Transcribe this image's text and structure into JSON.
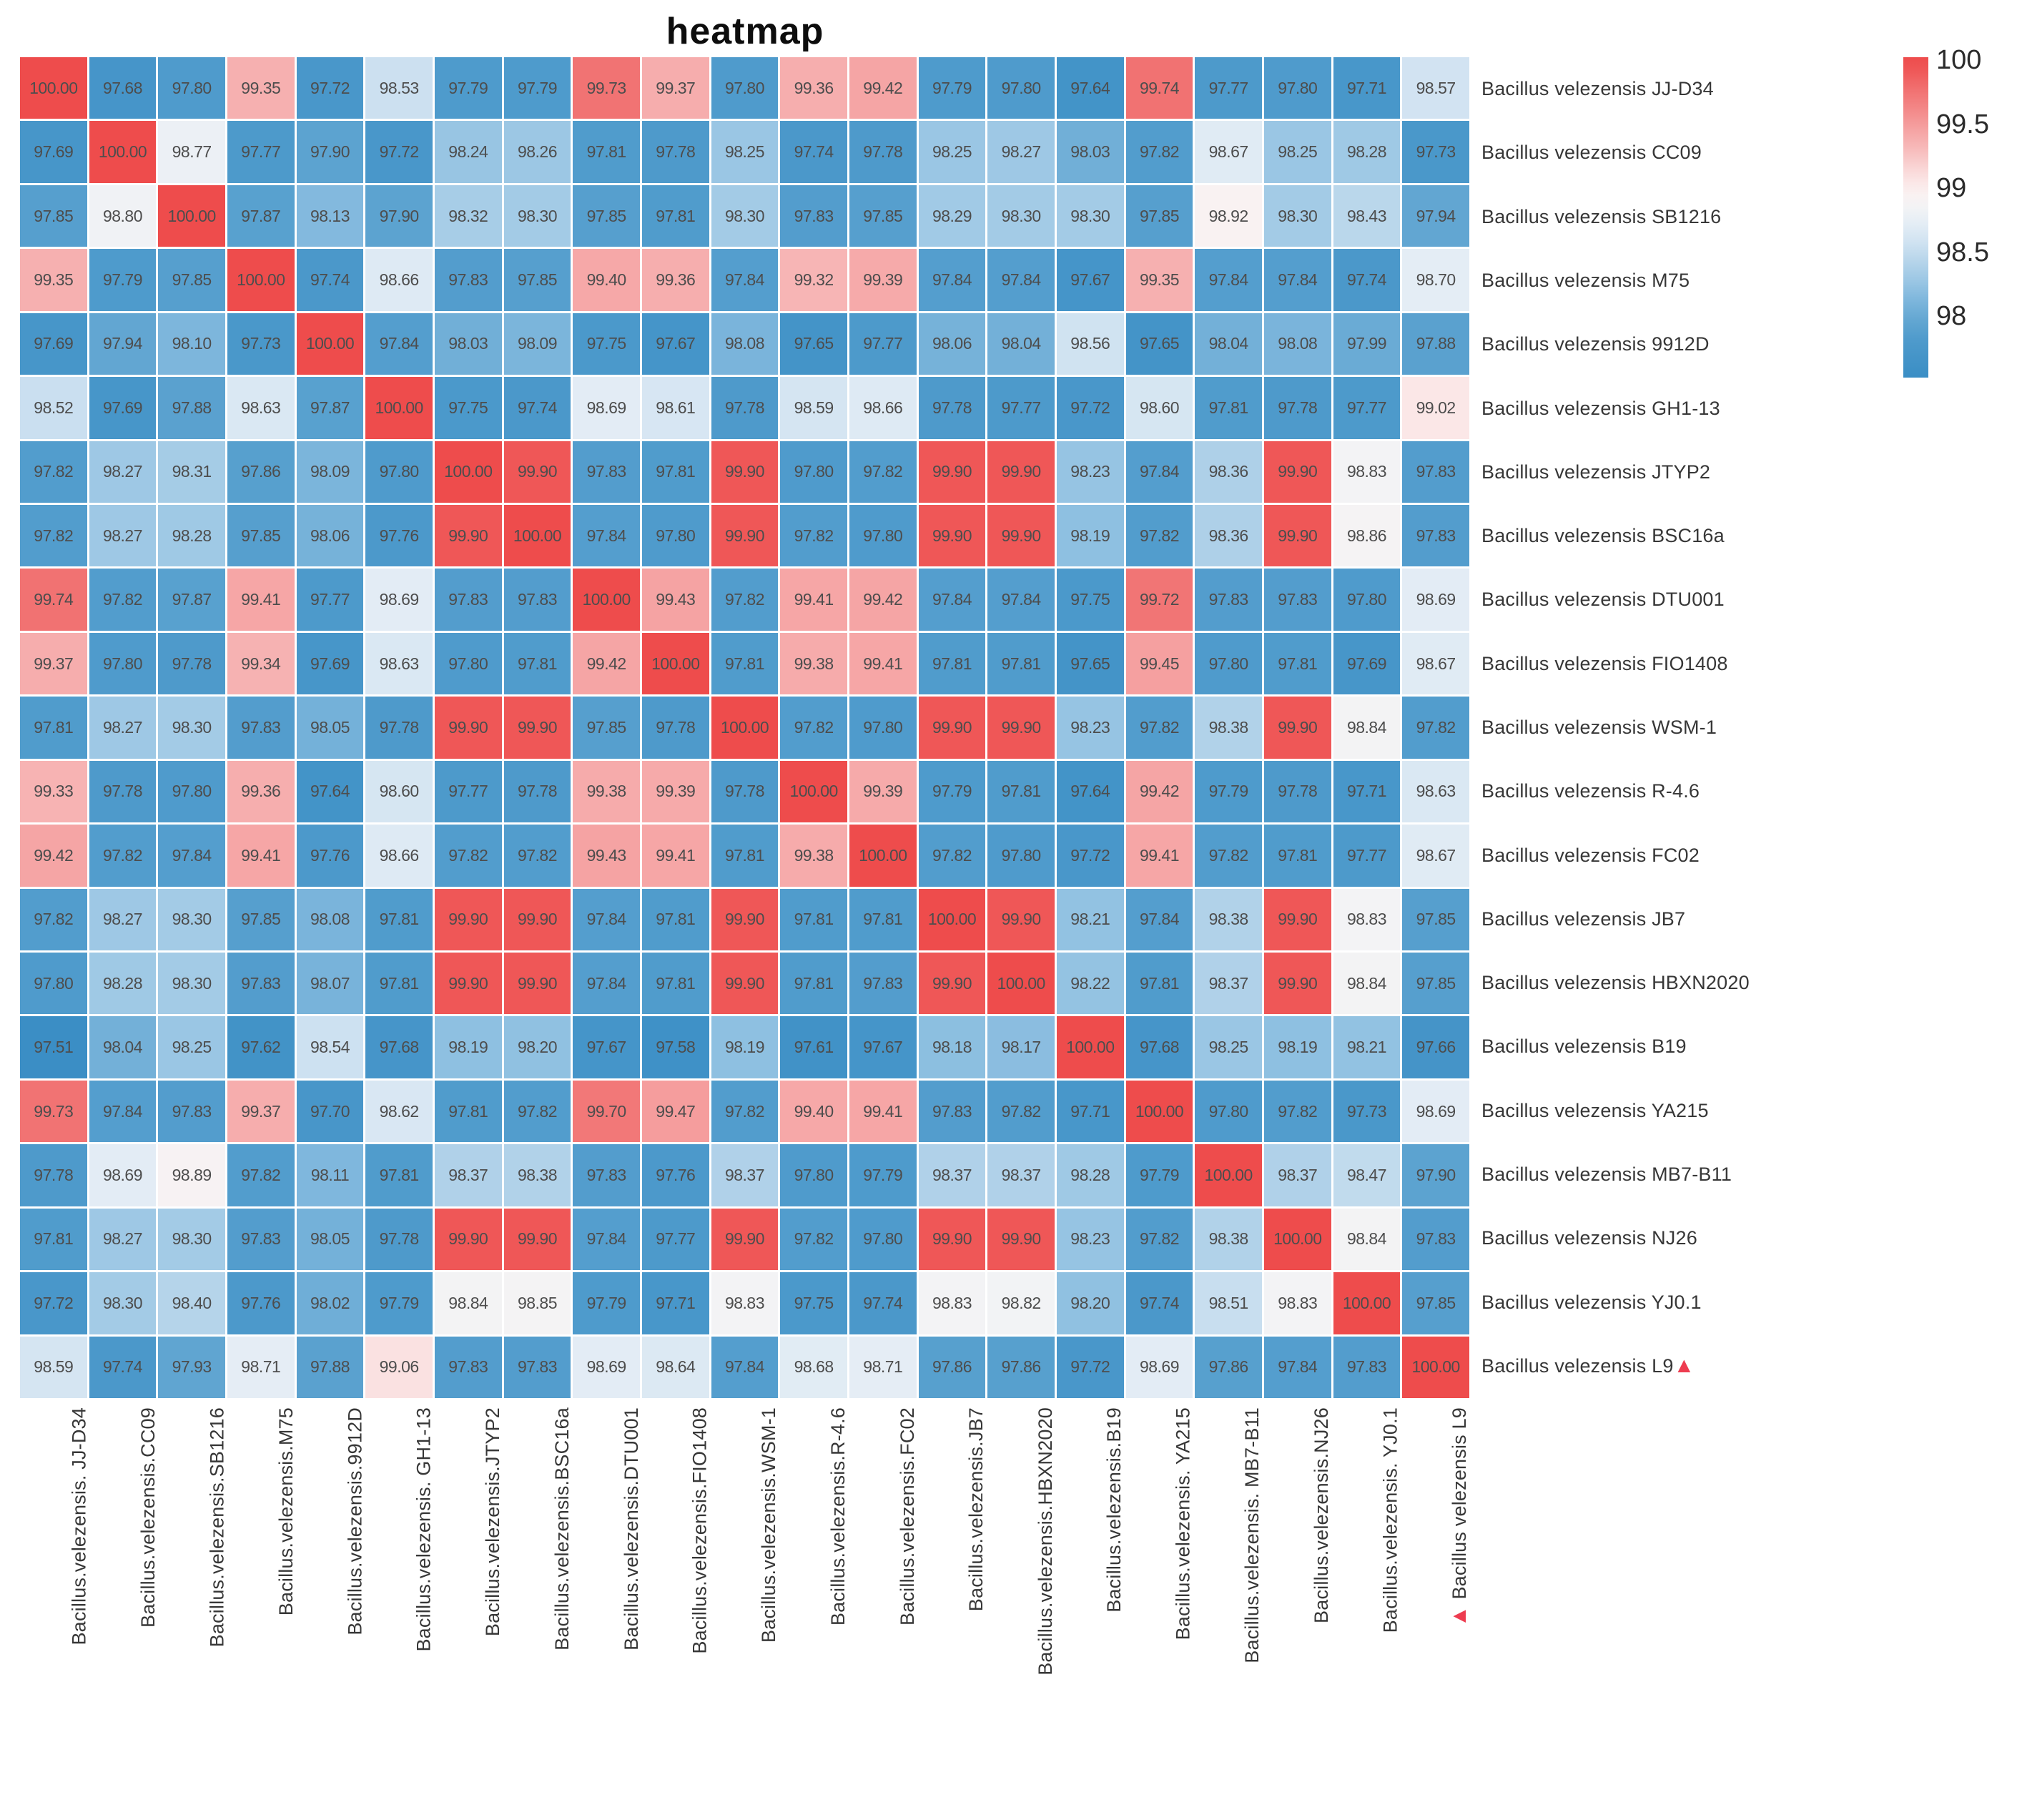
{
  "title": "heatmap",
  "colors": {
    "marker_red": "#ee3c50",
    "cell_text": "#4d4d4d",
    "label_text": "#373737",
    "background": "#ffffff"
  },
  "chart_data": {
    "type": "heatmap",
    "title": "heatmap",
    "legend_position": "right",
    "legend_ticks": [
      {
        "label": "100",
        "value": 100
      },
      {
        "label": "99.5",
        "value": 99.5
      },
      {
        "label": "99",
        "value": 99
      },
      {
        "label": "98.5",
        "value": 98.5
      },
      {
        "label": "98",
        "value": 98
      }
    ],
    "color_domain": [
      97.5,
      100
    ],
    "colormap": [
      {
        "value": 97.5,
        "color": "#3a8ec5"
      },
      {
        "value": 97.65,
        "color": "#4494c8"
      },
      {
        "value": 97.8,
        "color": "#4f9bcc"
      },
      {
        "value": 97.95,
        "color": "#63a7d2"
      },
      {
        "value": 98.1,
        "color": "#7db6dc"
      },
      {
        "value": 98.25,
        "color": "#9ac6e4"
      },
      {
        "value": 98.4,
        "color": "#b5d4ea"
      },
      {
        "value": 98.55,
        "color": "#cfe2f1"
      },
      {
        "value": 98.7,
        "color": "#e4edf5"
      },
      {
        "value": 98.82,
        "color": "#f2f3f5"
      },
      {
        "value": 98.92,
        "color": "#f9f2f2"
      },
      {
        "value": 99.02,
        "color": "#fbe7e7"
      },
      {
        "value": 99.15,
        "color": "#f9d3d3"
      },
      {
        "value": 99.3,
        "color": "#f7b8b8"
      },
      {
        "value": 99.45,
        "color": "#f5a0a0"
      },
      {
        "value": 99.6,
        "color": "#f38787"
      },
      {
        "value": 99.75,
        "color": "#f17070"
      },
      {
        "value": 99.9,
        "color": "#ef5757"
      },
      {
        "value": 100.0,
        "color": "#ee4c4c"
      }
    ],
    "highlighted_strain": "Bacillus velezensis L9",
    "highlight_marker": "▲",
    "row_labels": [
      "Bacillus velezensis JJ-D34",
      "Bacillus velezensis CC09",
      "Bacillus velezensis SB1216",
      "Bacillus velezensis M75",
      "Bacillus velezensis 9912D",
      "Bacillus velezensis GH1-13",
      "Bacillus velezensis JTYP2",
      "Bacillus velezensis BSC16a",
      "Bacillus velezensis DTU001",
      "Bacillus velezensis FIO1408",
      "Bacillus velezensis WSM-1",
      "Bacillus velezensis R-4.6",
      "Bacillus velezensis FC02",
      "Bacillus velezensis JB7",
      "Bacillus velezensis HBXN2020",
      "Bacillus velezensis B19",
      "Bacillus velezensis YA215",
      "Bacillus velezensis MB7-B11",
      "Bacillus velezensis NJ26",
      "Bacillus velezensis YJ0.1",
      "Bacillus velezensis L9"
    ],
    "col_labels": [
      "Bacillus.velezensis. JJ-D34",
      "Bacillus.velezensis.CC09",
      "Bacillus.velezensis.SB1216",
      "Bacillus.velezensis.M75",
      "Bacillus.velezensis.9912D",
      "Bacillus.velezensis. GH1-13",
      "Bacillus.velezensis.JTYP2",
      "Bacillus.velezensis.BSC16a",
      "Bacillus.velezensis.DTU001",
      "Bacillus.velezensis.FIO1408",
      "Bacillus.velezensis.WSM-1",
      "Bacillus.velezensis.R-4.6",
      "Bacillus.velezensis.FC02",
      "Bacillus.velezensis.JB7",
      "Bacillus.velezensis.HBXN2020",
      "Bacillus.velezensis.B19",
      "Bacillus.velezensis. YA215",
      "Bacillus.velezensis. MB7-B11",
      "Bacillus.velezensis.NJ26",
      "Bacillus.velezensis. YJ0.1",
      "Bacillus velezensis  L9"
    ],
    "values": [
      [
        "100.00",
        "97.68",
        "97.80",
        "99.35",
        "97.72",
        "98.53",
        "97.79",
        "97.79",
        "99.73",
        "99.37",
        "97.80",
        "99.36",
        "99.42",
        "97.79",
        "97.80",
        "97.64",
        "99.74",
        "97.77",
        "97.80",
        "97.71",
        "98.57"
      ],
      [
        "97.69",
        "100.00",
        "98.77",
        "97.77",
        "97.90",
        "97.72",
        "98.24",
        "98.26",
        "97.81",
        "97.78",
        "98.25",
        "97.74",
        "97.78",
        "98.25",
        "98.27",
        "98.03",
        "97.82",
        "98.67",
        "98.25",
        "98.28",
        "97.73"
      ],
      [
        "97.85",
        "98.80",
        "100.00",
        "97.87",
        "98.13",
        "97.90",
        "98.32",
        "98.30",
        "97.85",
        "97.81",
        "98.30",
        "97.83",
        "97.85",
        "98.29",
        "98.30",
        "98.30",
        "97.85",
        "98.92",
        "98.30",
        "98.43",
        "97.94"
      ],
      [
        "99.35",
        "97.79",
        "97.85",
        "100.00",
        "97.74",
        "98.66",
        "97.83",
        "97.85",
        "99.40",
        "99.36",
        "97.84",
        "99.32",
        "99.39",
        "97.84",
        "97.84",
        "97.67",
        "99.35",
        "97.84",
        "97.84",
        "97.74",
        "98.70"
      ],
      [
        "97.69",
        "97.94",
        "98.10",
        "97.73",
        "100.00",
        "97.84",
        "98.03",
        "98.09",
        "97.75",
        "97.67",
        "98.08",
        "97.65",
        "97.77",
        "98.06",
        "98.04",
        "98.56",
        "97.65",
        "98.04",
        "98.08",
        "97.99",
        "97.88"
      ],
      [
        "98.52",
        "97.69",
        "97.88",
        "98.63",
        "97.87",
        "100.00",
        "97.75",
        "97.74",
        "98.69",
        "98.61",
        "97.78",
        "98.59",
        "98.66",
        "97.78",
        "97.77",
        "97.72",
        "98.60",
        "97.81",
        "97.78",
        "97.77",
        "99.02"
      ],
      [
        "97.82",
        "98.27",
        "98.31",
        "97.86",
        "98.09",
        "97.80",
        "100.00",
        "99.90",
        "97.83",
        "97.81",
        "99.90",
        "97.80",
        "97.82",
        "99.90",
        "99.90",
        "98.23",
        "97.84",
        "98.36",
        "99.90",
        "98.83",
        "97.83"
      ],
      [
        "97.82",
        "98.27",
        "98.28",
        "97.85",
        "98.06",
        "97.76",
        "99.90",
        "100.00",
        "97.84",
        "97.80",
        "99.90",
        "97.82",
        "97.80",
        "99.90",
        "99.90",
        "98.19",
        "97.82",
        "98.36",
        "99.90",
        "98.86",
        "97.83"
      ],
      [
        "99.74",
        "97.82",
        "97.87",
        "99.41",
        "97.77",
        "98.69",
        "97.83",
        "97.83",
        "100.00",
        "99.43",
        "97.82",
        "99.41",
        "99.42",
        "97.84",
        "97.84",
        "97.75",
        "99.72",
        "97.83",
        "97.83",
        "97.80",
        "98.69"
      ],
      [
        "99.37",
        "97.80",
        "97.78",
        "99.34",
        "97.69",
        "98.63",
        "97.80",
        "97.81",
        "99.42",
        "100.00",
        "97.81",
        "99.38",
        "99.41",
        "97.81",
        "97.81",
        "97.65",
        "99.45",
        "97.80",
        "97.81",
        "97.69",
        "98.67"
      ],
      [
        "97.81",
        "98.27",
        "98.30",
        "97.83",
        "98.05",
        "97.78",
        "99.90",
        "99.90",
        "97.85",
        "97.78",
        "100.00",
        "97.82",
        "97.80",
        "99.90",
        "99.90",
        "98.23",
        "97.82",
        "98.38",
        "99.90",
        "98.84",
        "97.82"
      ],
      [
        "99.33",
        "97.78",
        "97.80",
        "99.36",
        "97.64",
        "98.60",
        "97.77",
        "97.78",
        "99.38",
        "99.39",
        "97.78",
        "100.00",
        "99.39",
        "97.79",
        "97.81",
        "97.64",
        "99.42",
        "97.79",
        "97.78",
        "97.71",
        "98.63"
      ],
      [
        "99.42",
        "97.82",
        "97.84",
        "99.41",
        "97.76",
        "98.66",
        "97.82",
        "97.82",
        "99.43",
        "99.41",
        "97.81",
        "99.38",
        "100.00",
        "97.82",
        "97.80",
        "97.72",
        "99.41",
        "97.82",
        "97.81",
        "97.77",
        "98.67"
      ],
      [
        "97.82",
        "98.27",
        "98.30",
        "97.85",
        "98.08",
        "97.81",
        "99.90",
        "99.90",
        "97.84",
        "97.81",
        "99.90",
        "97.81",
        "97.81",
        "100.00",
        "99.90",
        "98.21",
        "97.84",
        "98.38",
        "99.90",
        "98.83",
        "97.85"
      ],
      [
        "97.80",
        "98.28",
        "98.30",
        "97.83",
        "98.07",
        "97.81",
        "99.90",
        "99.90",
        "97.84",
        "97.81",
        "99.90",
        "97.81",
        "97.83",
        "99.90",
        "100.00",
        "98.22",
        "97.81",
        "98.37",
        "99.90",
        "98.84",
        "97.85"
      ],
      [
        "97.51",
        "98.04",
        "98.25",
        "97.62",
        "98.54",
        "97.68",
        "98.19",
        "98.20",
        "97.67",
        "97.58",
        "98.19",
        "97.61",
        "97.67",
        "98.18",
        "98.17",
        "100.00",
        "97.68",
        "98.25",
        "98.19",
        "98.21",
        "97.66"
      ],
      [
        "99.73",
        "97.84",
        "97.83",
        "99.37",
        "97.70",
        "98.62",
        "97.81",
        "97.82",
        "99.70",
        "99.47",
        "97.82",
        "99.40",
        "99.41",
        "97.83",
        "97.82",
        "97.71",
        "100.00",
        "97.80",
        "97.82",
        "97.73",
        "98.69"
      ],
      [
        "97.78",
        "98.69",
        "98.89",
        "97.82",
        "98.11",
        "97.81",
        "98.37",
        "98.38",
        "97.83",
        "97.76",
        "98.37",
        "97.80",
        "97.79",
        "98.37",
        "98.37",
        "98.28",
        "97.79",
        "100.00",
        "98.37",
        "98.47",
        "97.90"
      ],
      [
        "97.81",
        "98.27",
        "98.30",
        "97.83",
        "98.05",
        "97.78",
        "99.90",
        "99.90",
        "97.84",
        "97.77",
        "99.90",
        "97.82",
        "97.80",
        "99.90",
        "99.90",
        "98.23",
        "97.82",
        "98.38",
        "100.00",
        "98.84",
        "97.83"
      ],
      [
        "97.72",
        "98.30",
        "98.40",
        "97.76",
        "98.02",
        "97.79",
        "98.84",
        "98.85",
        "97.79",
        "97.71",
        "98.83",
        "97.75",
        "97.74",
        "98.83",
        "98.82",
        "98.20",
        "97.74",
        "98.51",
        "98.83",
        "100.00",
        "97.85"
      ],
      [
        "98.59",
        "97.74",
        "97.93",
        "98.71",
        "97.88",
        "99.06",
        "97.83",
        "97.83",
        "98.69",
        "98.64",
        "97.84",
        "98.68",
        "98.71",
        "97.86",
        "97.86",
        "97.72",
        "98.69",
        "97.86",
        "97.84",
        "97.83",
        "100.00"
      ]
    ]
  }
}
